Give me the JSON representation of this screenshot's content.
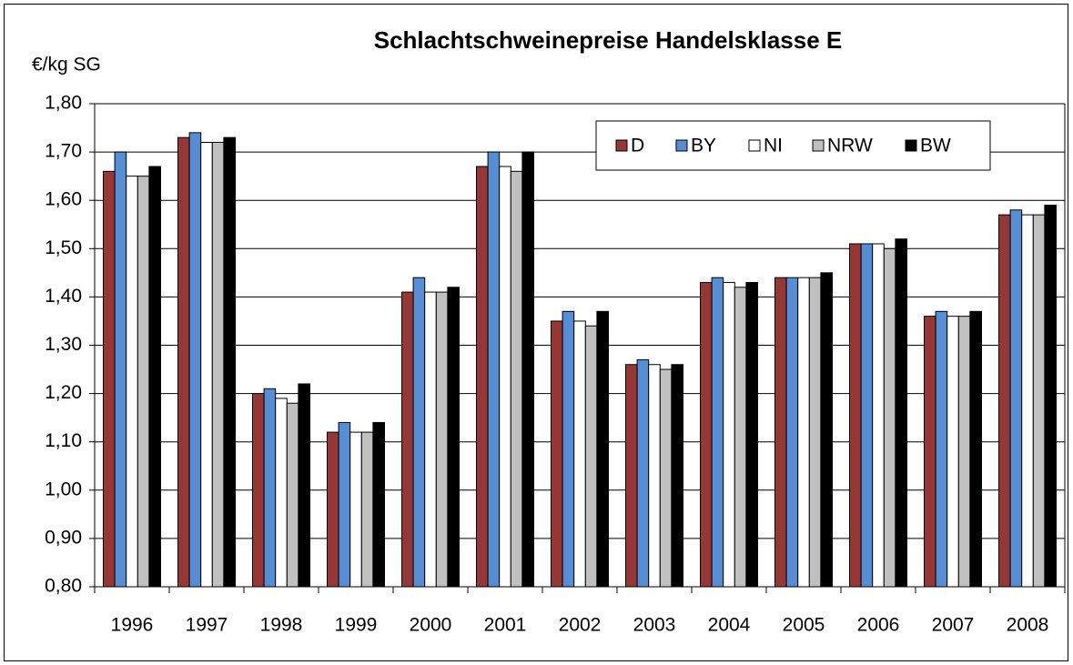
{
  "chart_data": {
    "type": "bar",
    "title": "Schlachtschweinepreise Handelsklasse E",
    "y_label": "€/kg SG",
    "categories": [
      "1996",
      "1997",
      "1998",
      "1999",
      "2000",
      "2001",
      "2002",
      "2003",
      "2004",
      "2005",
      "2006",
      "2007",
      "2008"
    ],
    "series": [
      {
        "name": "D",
        "color": "#953735",
        "values": [
          1.66,
          1.73,
          1.2,
          1.12,
          1.41,
          1.67,
          1.35,
          1.26,
          1.43,
          1.44,
          1.51,
          1.36,
          1.57
        ]
      },
      {
        "name": "BY",
        "color": "#558ed5",
        "values": [
          1.7,
          1.74,
          1.21,
          1.14,
          1.44,
          1.7,
          1.37,
          1.27,
          1.44,
          1.44,
          1.51,
          1.37,
          1.58
        ]
      },
      {
        "name": "NI",
        "color": "#ffffff",
        "values": [
          1.65,
          1.72,
          1.19,
          1.12,
          1.41,
          1.67,
          1.35,
          1.26,
          1.43,
          1.44,
          1.51,
          1.36,
          1.57
        ]
      },
      {
        "name": "NRW",
        "color": "#c0c0c0",
        "values": [
          1.65,
          1.72,
          1.18,
          1.12,
          1.41,
          1.66,
          1.34,
          1.25,
          1.42,
          1.44,
          1.5,
          1.36,
          1.57
        ]
      },
      {
        "name": "BW",
        "color": "#000000",
        "values": [
          1.67,
          1.73,
          1.22,
          1.14,
          1.42,
          1.7,
          1.37,
          1.26,
          1.43,
          1.45,
          1.52,
          1.37,
          1.59
        ]
      }
    ],
    "ylim": [
      0.8,
      1.8
    ],
    "yticks": [
      {
        "value": 0.8,
        "label": "0,80"
      },
      {
        "value": 0.9,
        "label": "0,90"
      },
      {
        "value": 1.0,
        "label": "1,00"
      },
      {
        "value": 1.1,
        "label": "1,10"
      },
      {
        "value": 1.2,
        "label": "1,20"
      },
      {
        "value": 1.3,
        "label": "1,30"
      },
      {
        "value": 1.4,
        "label": "1,40"
      },
      {
        "value": 1.5,
        "label": "1,50"
      },
      {
        "value": 1.6,
        "label": "1,60"
      },
      {
        "value": 1.7,
        "label": "1,70"
      },
      {
        "value": 1.8,
        "label": "1,80"
      }
    ],
    "grid": true,
    "legend": "top-right"
  }
}
